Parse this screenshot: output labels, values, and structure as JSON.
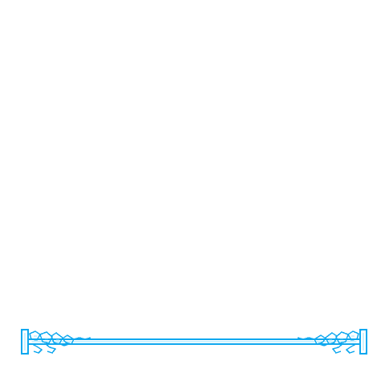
{
  "scene": {
    "background_color": "#ffffff",
    "accent_color": "#10a8ef",
    "highlight_color": "#9de6ff",
    "elements": {
      "left_cap": "ornate-left-end-cap-icon",
      "right_cap": "ornate-right-end-cap-icon",
      "left_leaves": "leaf-scroll-left-icon",
      "right_leaves": "leaf-scroll-right-icon",
      "bar": "horizontal-pixel-rod"
    }
  }
}
